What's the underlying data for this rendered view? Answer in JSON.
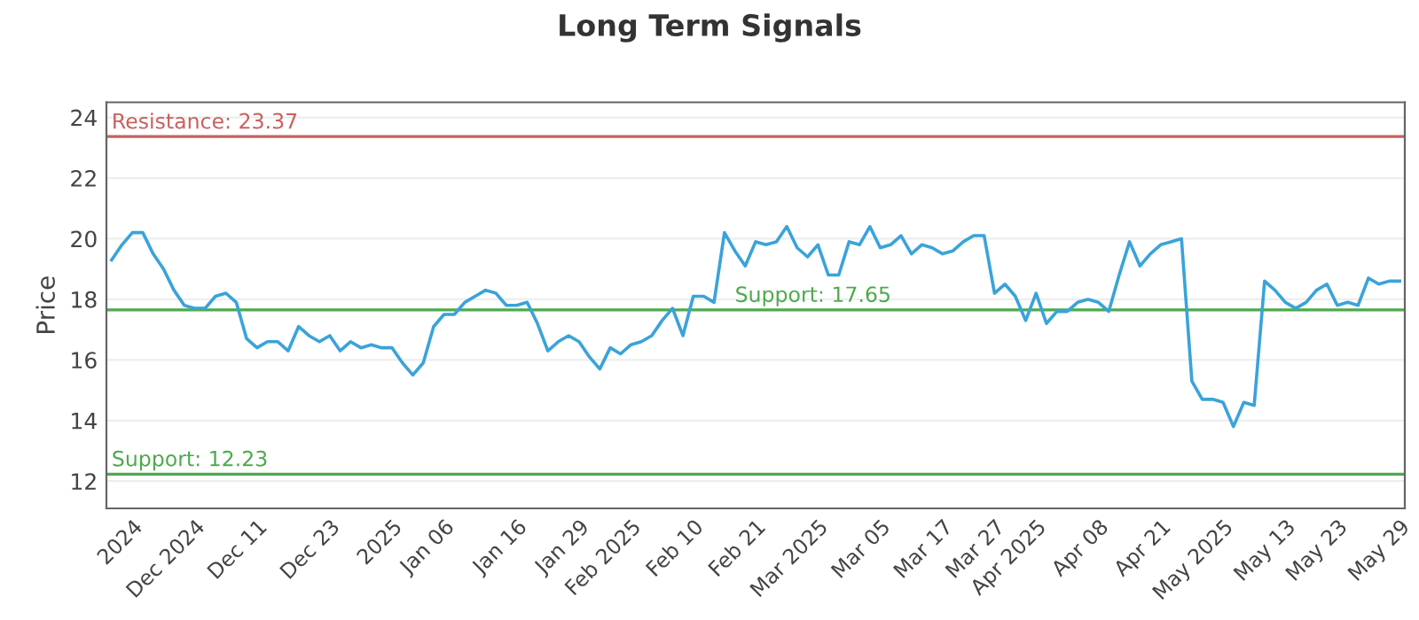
{
  "chart_data": {
    "type": "line",
    "title": "Long Term Signals",
    "ylabel": "Price",
    "categories": [
      null,
      null,
      "2024",
      null,
      null,
      null,
      null,
      null,
      "Dec 2024",
      null,
      null,
      null,
      null,
      null,
      "Dec 11",
      null,
      null,
      null,
      null,
      null,
      null,
      "Dec 23",
      null,
      null,
      null,
      null,
      null,
      "2025",
      null,
      null,
      null,
      null,
      "Jan 06",
      null,
      null,
      null,
      null,
      null,
      null,
      "Jan 16",
      null,
      null,
      null,
      null,
      null,
      "Jan 29",
      null,
      null,
      null,
      null,
      "Feb 2025",
      null,
      null,
      null,
      null,
      null,
      "Feb 10",
      null,
      null,
      null,
      null,
      null,
      "Feb 21",
      null,
      null,
      null,
      null,
      null,
      "Mar 2025",
      null,
      null,
      null,
      null,
      null,
      "Mar 05",
      null,
      null,
      null,
      null,
      null,
      "Mar 17",
      null,
      null,
      null,
      null,
      "Mar 27",
      null,
      null,
      null,
      "Apr 2025",
      null,
      null,
      null,
      null,
      null,
      "Apr 08",
      null,
      null,
      null,
      null,
      null,
      "Apr 21",
      null,
      null,
      null,
      null,
      null,
      "May 2025",
      null,
      null,
      null,
      null,
      null,
      "May 13",
      null,
      null,
      null,
      null,
      "May 23",
      null,
      null,
      null,
      null,
      null,
      "May 29"
    ],
    "series": [
      {
        "color": "#3aa3d9",
        "values": [
          19.3,
          19.8,
          20.2,
          20.2,
          19.5,
          19.0,
          18.3,
          17.8,
          17.7,
          17.7,
          18.1,
          18.2,
          17.9,
          16.7,
          16.4,
          16.6,
          16.6,
          16.3,
          17.1,
          16.8,
          16.6,
          16.8,
          16.3,
          16.6,
          16.4,
          16.5,
          16.4,
          16.4,
          15.9,
          15.5,
          15.9,
          17.1,
          17.5,
          17.5,
          17.9,
          18.1,
          18.3,
          18.2,
          17.8,
          17.8,
          17.9,
          17.2,
          16.3,
          16.6,
          16.8,
          16.6,
          16.1,
          15.7,
          16.4,
          16.2,
          16.5,
          16.6,
          16.8,
          17.3,
          17.7,
          16.8,
          18.1,
          18.1,
          17.9,
          20.2,
          19.6,
          19.1,
          19.9,
          19.8,
          19.9,
          20.4,
          19.7,
          19.4,
          19.8,
          18.8,
          18.8,
          19.9,
          19.8,
          20.4,
          19.7,
          19.8,
          20.1,
          19.5,
          19.8,
          19.7,
          19.5,
          19.6,
          19.9,
          20.1,
          20.1,
          18.2,
          18.5,
          18.1,
          17.3,
          18.2,
          17.2,
          17.6,
          17.6,
          17.9,
          18.0,
          17.9,
          17.6,
          18.8,
          19.9,
          19.1,
          19.5,
          19.8,
          19.9,
          20.0,
          15.3,
          14.7,
          14.7,
          14.6,
          13.8,
          14.6,
          14.5,
          18.6,
          18.3,
          17.9,
          17.7,
          17.9,
          18.3,
          18.5,
          17.8,
          17.9,
          17.8,
          18.7,
          18.5,
          18.6,
          18.6
        ]
      }
    ],
    "ylim": [
      11.1,
      24.5
    ],
    "yticks": [
      12,
      14,
      16,
      18,
      20,
      22,
      24
    ],
    "grid": "y",
    "marker": "none",
    "line_style": "solid",
    "ref_lines": [
      {
        "axis": "y",
        "value": 23.37,
        "label": "Resistance: 23.37",
        "color": "#c9605e"
      },
      {
        "axis": "y",
        "value": 17.65,
        "label": "Support: 17.65",
        "color": "#4caa4c"
      },
      {
        "axis": "y",
        "value": 12.23,
        "label": "Support: 12.23",
        "color": "#4caa4c"
      }
    ]
  }
}
